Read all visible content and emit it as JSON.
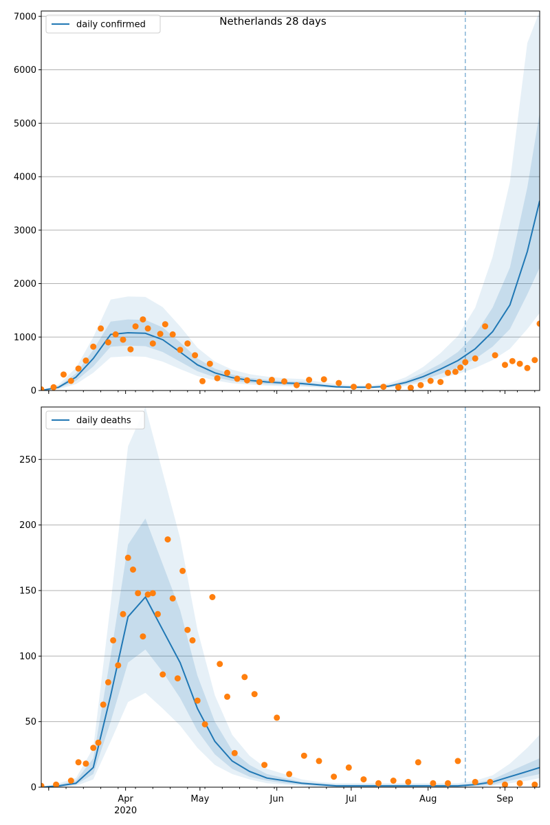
{
  "chart_data": [
    {
      "type": "line",
      "title": "Netherlands 28 days",
      "ylim": [
        0,
        7100
      ],
      "yticks": [
        0,
        1000,
        2000,
        3000,
        4000,
        5000,
        6000,
        7000
      ],
      "forecast_start": "2020-08-16",
      "grid": "horizontal",
      "legend_position": "top-left",
      "colors": {
        "line": "#1f77b4",
        "band": "#1f77b4",
        "points": "#ff7f0e",
        "grid": "#b0b0b0"
      },
      "series": [
        {
          "name": "daily confirmed",
          "type": "line",
          "dates": [
            "2020-02-27",
            "2020-03-05",
            "2020-03-12",
            "2020-03-19",
            "2020-03-26",
            "2020-04-02",
            "2020-04-09",
            "2020-04-16",
            "2020-04-23",
            "2020-04-30",
            "2020-05-07",
            "2020-05-14",
            "2020-05-21",
            "2020-05-28",
            "2020-06-04",
            "2020-06-11",
            "2020-06-18",
            "2020-06-25",
            "2020-07-02",
            "2020-07-09",
            "2020-07-16",
            "2020-07-23",
            "2020-07-30",
            "2020-08-06",
            "2020-08-13",
            "2020-08-20",
            "2020-08-27",
            "2020-09-03",
            "2020-09-10",
            "2020-09-15"
          ],
          "values": [
            0,
            60,
            250,
            600,
            1050,
            1080,
            1070,
            950,
            720,
            480,
            330,
            240,
            190,
            160,
            140,
            130,
            100,
            70,
            60,
            60,
            80,
            150,
            260,
            400,
            560,
            780,
            1100,
            1600,
            2600,
            3550
          ],
          "band_inner_low": [
            0,
            40,
            180,
            450,
            820,
            840,
            830,
            720,
            540,
            360,
            250,
            180,
            145,
            120,
            105,
            95,
            75,
            52,
            45,
            45,
            60,
            115,
            200,
            310,
            430,
            590,
            820,
            1150,
            1800,
            2300
          ],
          "band_inner_high": [
            0,
            80,
            320,
            760,
            1290,
            1330,
            1320,
            1180,
            900,
            600,
            410,
            300,
            235,
            200,
            175,
            165,
            125,
            90,
            75,
            75,
            100,
            190,
            330,
            500,
            720,
            1050,
            1550,
            2300,
            3800,
            5200
          ],
          "band_outer_low": [
            0,
            25,
            120,
            330,
            620,
            640,
            630,
            540,
            400,
            270,
            190,
            135,
            110,
            90,
            80,
            72,
            56,
            40,
            34,
            34,
            45,
            85,
            150,
            230,
            310,
            420,
            570,
            780,
            1150,
            1450
          ],
          "band_outer_high": [
            0,
            110,
            420,
            1000,
            1700,
            1760,
            1750,
            1560,
            1200,
            800,
            540,
            390,
            305,
            260,
            228,
            215,
            165,
            118,
            98,
            98,
            130,
            250,
            440,
            700,
            1020,
            1550,
            2500,
            3900,
            6500,
            7100
          ]
        },
        {
          "name": "points",
          "type": "scatter",
          "dates": [
            "2020-02-27",
            "2020-03-03",
            "2020-03-07",
            "2020-03-10",
            "2020-03-13",
            "2020-03-16",
            "2020-03-19",
            "2020-03-22",
            "2020-03-25",
            "2020-03-28",
            "2020-03-31",
            "2020-04-03",
            "2020-04-05",
            "2020-04-08",
            "2020-04-10",
            "2020-04-12",
            "2020-04-15",
            "2020-04-17",
            "2020-04-20",
            "2020-04-23",
            "2020-04-26",
            "2020-04-29",
            "2020-05-02",
            "2020-05-05",
            "2020-05-08",
            "2020-05-12",
            "2020-05-16",
            "2020-05-20",
            "2020-05-25",
            "2020-05-30",
            "2020-06-04",
            "2020-06-09",
            "2020-06-14",
            "2020-06-20",
            "2020-06-26",
            "2020-07-02",
            "2020-07-08",
            "2020-07-14",
            "2020-07-20",
            "2020-07-25",
            "2020-07-29",
            "2020-08-02",
            "2020-08-06",
            "2020-08-09",
            "2020-08-12",
            "2020-08-14",
            "2020-08-16",
            "2020-08-20",
            "2020-08-24",
            "2020-08-28",
            "2020-09-01",
            "2020-09-04",
            "2020-09-07",
            "2020-09-10",
            "2020-09-13",
            "2020-09-15"
          ],
          "values": [
            20,
            60,
            300,
            180,
            410,
            560,
            820,
            1160,
            900,
            1050,
            950,
            770,
            1200,
            1330,
            1160,
            880,
            1060,
            1240,
            1050,
            760,
            880,
            660,
            175,
            500,
            230,
            330,
            220,
            190,
            160,
            200,
            170,
            100,
            200,
            210,
            140,
            70,
            80,
            70,
            60,
            50,
            100,
            180,
            160,
            330,
            350,
            430,
            530,
            600,
            1200,
            660,
            480,
            550,
            500,
            420,
            570,
            1250
          ]
        }
      ]
    },
    {
      "type": "line",
      "ylim": [
        0,
        290
      ],
      "yticks": [
        0,
        50,
        100,
        150,
        200,
        250
      ],
      "forecast_start": "2020-08-16",
      "grid": "horizontal",
      "legend_position": "top-left",
      "x_ticks": [
        "Apr",
        "May",
        "Jun",
        "Jul",
        "Aug",
        "Sep"
      ],
      "x_year_label": "2020",
      "colors": {
        "line": "#1f77b4",
        "band": "#1f77b4",
        "points": "#ff7f0e",
        "grid": "#b0b0b0"
      },
      "series": [
        {
          "name": "daily deaths",
          "type": "line",
          "dates": [
            "2020-02-27",
            "2020-03-05",
            "2020-03-12",
            "2020-03-19",
            "2020-03-26",
            "2020-04-02",
            "2020-04-09",
            "2020-04-16",
            "2020-04-23",
            "2020-04-30",
            "2020-05-07",
            "2020-05-14",
            "2020-05-21",
            "2020-05-28",
            "2020-06-04",
            "2020-06-11",
            "2020-06-18",
            "2020-06-25",
            "2020-07-02",
            "2020-07-09",
            "2020-07-16",
            "2020-07-23",
            "2020-07-30",
            "2020-08-06",
            "2020-08-13",
            "2020-08-20",
            "2020-08-27",
            "2020-09-03",
            "2020-09-10",
            "2020-09-15"
          ],
          "values": [
            0,
            1,
            3,
            15,
            70,
            130,
            145,
            120,
            95,
            60,
            35,
            20,
            12,
            7,
            5,
            3,
            2,
            1,
            1,
            1,
            1,
            1,
            1,
            1,
            1,
            2,
            4,
            8,
            12,
            15
          ],
          "band_inner_low": [
            0,
            0,
            2,
            10,
            50,
            95,
            105,
            88,
            68,
            43,
            25,
            14,
            8,
            5,
            3,
            2,
            1,
            0,
            0,
            0,
            0,
            0,
            0,
            0,
            0,
            1,
            2,
            5,
            8,
            10
          ],
          "band_inner_high": [
            0,
            2,
            5,
            22,
            100,
            185,
            205,
            170,
            135,
            85,
            50,
            28,
            17,
            10,
            7,
            4,
            3,
            2,
            2,
            2,
            2,
            2,
            2,
            2,
            2,
            3,
            6,
            12,
            18,
            22
          ],
          "band_outer_low": [
            0,
            0,
            1,
            6,
            35,
            65,
            72,
            60,
            47,
            30,
            17,
            10,
            6,
            3,
            2,
            1,
            0,
            0,
            0,
            0,
            0,
            0,
            0,
            0,
            0,
            0,
            1,
            3,
            5,
            7
          ],
          "band_outer_high": [
            0,
            3,
            7,
            30,
            140,
            260,
            290,
            240,
            190,
            120,
            70,
            40,
            24,
            14,
            10,
            6,
            4,
            3,
            3,
            3,
            3,
            3,
            3,
            3,
            3,
            5,
            9,
            18,
            30,
            40
          ]
        },
        {
          "name": "points",
          "type": "scatter",
          "dates": [
            "2020-02-27",
            "2020-03-04",
            "2020-03-10",
            "2020-03-13",
            "2020-03-16",
            "2020-03-19",
            "2020-03-21",
            "2020-03-23",
            "2020-03-25",
            "2020-03-27",
            "2020-03-29",
            "2020-03-31",
            "2020-04-02",
            "2020-04-04",
            "2020-04-06",
            "2020-04-08",
            "2020-04-10",
            "2020-04-12",
            "2020-04-14",
            "2020-04-16",
            "2020-04-18",
            "2020-04-20",
            "2020-04-22",
            "2020-04-24",
            "2020-04-26",
            "2020-04-28",
            "2020-04-30",
            "2020-05-03",
            "2020-05-06",
            "2020-05-09",
            "2020-05-12",
            "2020-05-15",
            "2020-05-19",
            "2020-05-23",
            "2020-05-27",
            "2020-06-01",
            "2020-06-06",
            "2020-06-12",
            "2020-06-18",
            "2020-06-24",
            "2020-06-30",
            "2020-07-06",
            "2020-07-12",
            "2020-07-18",
            "2020-07-24",
            "2020-07-28",
            "2020-08-03",
            "2020-08-09",
            "2020-08-13",
            "2020-08-20",
            "2020-08-26",
            "2020-09-01",
            "2020-09-07",
            "2020-09-13"
          ],
          "values": [
            1,
            2,
            5,
            19,
            18,
            30,
            34,
            63,
            80,
            112,
            93,
            132,
            175,
            166,
            148,
            115,
            147,
            148,
            132,
            86,
            189,
            144,
            83,
            165,
            120,
            112,
            66,
            48,
            145,
            94,
            69,
            26,
            84,
            71,
            17,
            53,
            10,
            24,
            20,
            8,
            15,
            6,
            3,
            5,
            4,
            19,
            3,
            3,
            20,
            4,
            4,
            2,
            3,
            2
          ]
        }
      ]
    }
  ]
}
